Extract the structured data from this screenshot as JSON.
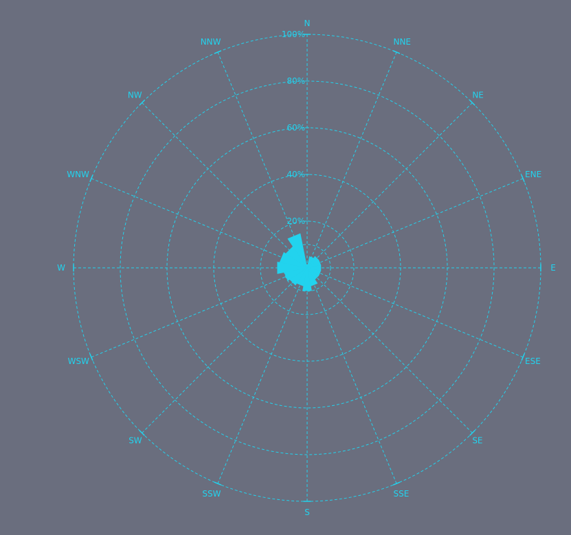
{
  "colors": {
    "background": "#6a6e7e",
    "accent": "#22d3ee",
    "bar_fill": "#22d3ee"
  },
  "chart_data": {
    "type": "polar-bar",
    "subtype": "wind-rose",
    "title": "",
    "directions": [
      "N",
      "NNE",
      "NE",
      "ENE",
      "E",
      "ESE",
      "SE",
      "SSE",
      "S",
      "SSW",
      "SW",
      "WSW",
      "W",
      "WNW",
      "NW",
      "NNW"
    ],
    "radial_ticks": [
      "20%",
      "40%",
      "60%",
      "80%",
      "100%"
    ],
    "rmax": 100,
    "grid": true,
    "grid_style": "dashed",
    "series": [
      {
        "values": [
          1.5,
          5,
          6,
          6,
          6,
          6,
          6,
          8,
          10,
          8,
          9,
          10,
          13,
          12,
          11,
          15
        ]
      }
    ]
  }
}
